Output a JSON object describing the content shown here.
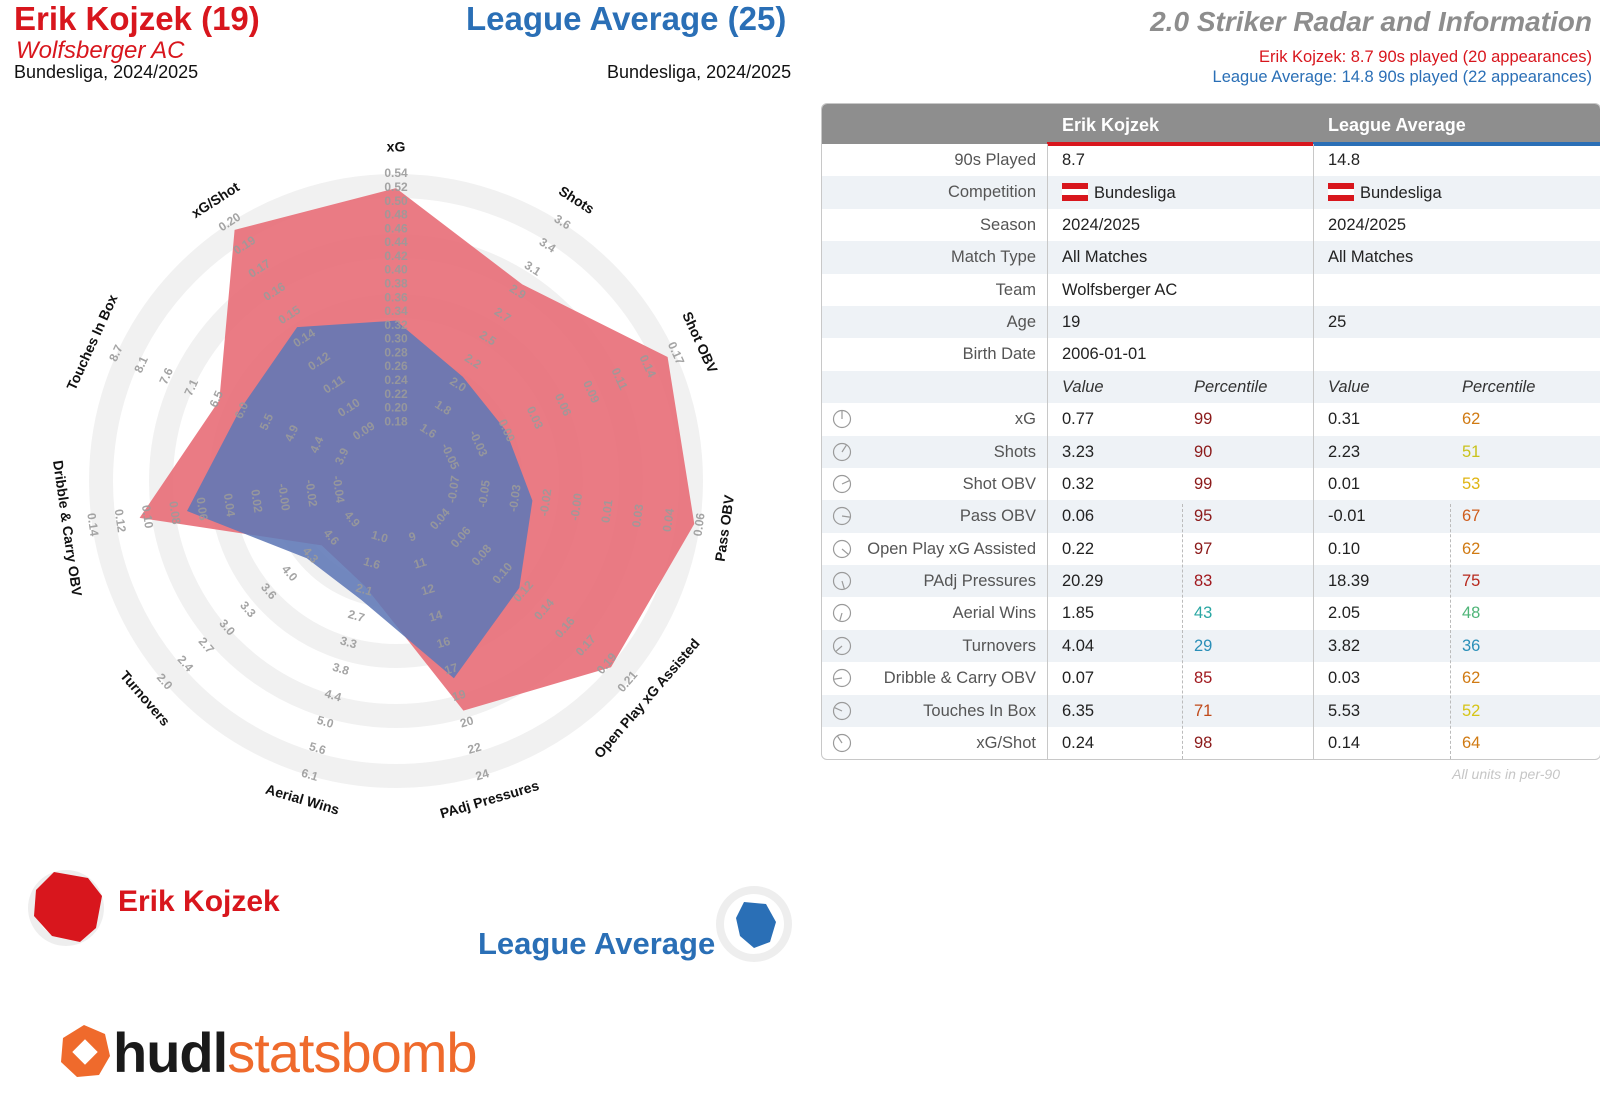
{
  "header": {
    "player_name": "Erik Kojzek (19)",
    "player_team": "Wolfsberger AC",
    "player_comp": "Bundesliga, 2024/2025",
    "average_name": "League Average (25)",
    "average_comp": "Bundesliga, 2024/2025",
    "title": "2.0 Striker Radar and Information",
    "player_minutes": "Erik Kojzek: 8.7 90s played (20 appearances)",
    "average_minutes": "League Average: 14.8 90s played (22 appearances)"
  },
  "colors": {
    "player": "#d8161d",
    "average": "#2a6fb6",
    "player_fill": "#e8707a",
    "average_fill": "#5f77b6"
  },
  "chart_data": {
    "type": "radar",
    "axes": [
      {
        "name": "xG",
        "ticks": [
          "0.18",
          "0.20",
          "0.22",
          "0.24",
          "0.26",
          "0.28",
          "0.30",
          "0.32",
          "0.34",
          "0.36",
          "0.38",
          "0.40",
          "0.42",
          "0.44",
          "0.46",
          "0.48",
          "0.50",
          "0.52",
          "0.54"
        ]
      },
      {
        "name": "Shots",
        "ticks": [
          "1.6",
          "1.8",
          "2.0",
          "2.2",
          "2.5",
          "2.7",
          "2.9",
          "3.1",
          "3.4",
          "3.6"
        ]
      },
      {
        "name": "Shot OBV",
        "ticks": [
          "-0.05",
          "-0.03",
          "0.00",
          "0.03",
          "0.06",
          "0.09",
          "0.11",
          "0.14",
          "0.17"
        ]
      },
      {
        "name": "Pass OBV",
        "ticks": [
          "-0.07",
          "-0.05",
          "-0.03",
          "-0.02",
          "-0.00",
          "0.01",
          "0.03",
          "0.04",
          "0.06"
        ]
      },
      {
        "name": "Open Play xG Assisted",
        "ticks": [
          "0.04",
          "0.06",
          "0.08",
          "0.10",
          "0.12",
          "0.14",
          "0.16",
          "0.17",
          "0.19",
          "0.21"
        ]
      },
      {
        "name": "PAdj Pressures",
        "ticks": [
          "9",
          "11",
          "12",
          "14",
          "16",
          "17",
          "19",
          "20",
          "22",
          "24"
        ]
      },
      {
        "name": "Aerial Wins",
        "ticks": [
          "1.0",
          "1.6",
          "2.1",
          "2.7",
          "3.3",
          "3.8",
          "4.4",
          "5.0",
          "5.6",
          "6.1"
        ]
      },
      {
        "name": "Turnovers",
        "ticks": [
          "4.9",
          "4.6",
          "4.3",
          "4.0",
          "3.6",
          "3.3",
          "3.0",
          "2.7",
          "2.4",
          "2.0"
        ]
      },
      {
        "name": "Dribble & Carry OBV",
        "ticks": [
          "-0.04",
          "-0.02",
          "-0.00",
          "0.02",
          "0.04",
          "0.06",
          "0.08",
          "0.10",
          "0.12",
          "0.14"
        ]
      },
      {
        "name": "Touches In Box",
        "ticks": [
          "3.9",
          "4.4",
          "4.9",
          "5.5",
          "6.0",
          "6.5",
          "7.1",
          "7.6",
          "8.1",
          "8.7"
        ]
      },
      {
        "name": "xG/Shot",
        "ticks": [
          "0.09",
          "0.10",
          "0.11",
          "0.12",
          "0.14",
          "0.15",
          "0.16",
          "0.17",
          "0.19",
          "0.20"
        ]
      }
    ],
    "series": [
      {
        "name": "Erik Kojzek",
        "values": [
          0.54,
          3.23,
          0.17,
          0.06,
          0.21,
          20.29,
          1.85,
          4.04,
          0.07,
          6.35,
          0.2
        ]
      },
      {
        "name": "League Average",
        "values": [
          0.31,
          2.23,
          0.01,
          -0.01,
          0.1,
          18.39,
          2.05,
          3.82,
          0.03,
          5.53,
          0.14
        ]
      }
    ],
    "fractions": [
      [
        0.95,
        0.74,
        0.97,
        0.98,
        0.92,
        0.76,
        0.3,
        0.26,
        0.83,
        0.6,
        0.97
      ],
      [
        0.48,
        0.35,
        0.34,
        0.4,
        0.49,
        0.64,
        0.35,
        0.33,
        0.66,
        0.52,
        0.56
      ]
    ]
  },
  "legend": {
    "player": "Erik Kojzek",
    "average": "League Average"
  },
  "brand": {
    "part1": "hudl",
    "part2": "statsbomb"
  },
  "table": {
    "head_player": "Erik Kojzek",
    "head_average": "League Average",
    "info_rows": [
      {
        "label": "90s Played",
        "player": "8.7",
        "average": "14.8"
      },
      {
        "label": "Competition",
        "player": "Bundesliga",
        "average": "Bundesliga"
      },
      {
        "label": "Season",
        "player": "2024/2025",
        "average": "2024/2025"
      },
      {
        "label": "Match Type",
        "player": "All Matches",
        "average": "All Matches"
      },
      {
        "label": "Team",
        "player": "Wolfsberger AC",
        "average": ""
      },
      {
        "label": "Age",
        "player": "19",
        "average": "25"
      },
      {
        "label": "Birth Date",
        "player": "2006-01-01",
        "average": ""
      }
    ],
    "sub_head": {
      "value": "Value",
      "percentile": "Percentile"
    },
    "stat_rows": [
      {
        "label": "xG",
        "pv": "0.77",
        "pp": "99",
        "pc": "#8b1a1a",
        "av": "0.31",
        "ap": "62",
        "ac": "#d07a12"
      },
      {
        "label": "Shots",
        "pv": "3.23",
        "pp": "90",
        "pc": "#8b1a1a",
        "av": "2.23",
        "ap": "51",
        "ac": "#c9c21c"
      },
      {
        "label": "Shot OBV",
        "pv": "0.32",
        "pp": "99",
        "pc": "#8b1a1a",
        "av": "0.01",
        "ap": "53",
        "ac": "#e0b512"
      },
      {
        "label": "Pass OBV",
        "pv": "0.06",
        "pp": "95",
        "pc": "#8b1a1a",
        "av": "-0.01",
        "ap": "67",
        "ac": "#cf5d1c"
      },
      {
        "label": "Open Play xG Assisted",
        "pv": "0.22",
        "pp": "97",
        "pc": "#8b1a1a",
        "av": "0.10",
        "ap": "62",
        "ac": "#d07a12"
      },
      {
        "label": "PAdj Pressures",
        "pv": "20.29",
        "pp": "83",
        "pc": "#a0181e",
        "av": "18.39",
        "ap": "75",
        "ac": "#b7281c"
      },
      {
        "label": "Aerial Wins",
        "pv": "1.85",
        "pp": "43",
        "pc": "#2aa7a3",
        "av": "2.05",
        "ap": "48",
        "ac": "#4fb578"
      },
      {
        "label": "Turnovers",
        "pv": "4.04",
        "pp": "29",
        "pc": "#2a8fb8",
        "av": "3.82",
        "ap": "36",
        "ac": "#2a8fb8"
      },
      {
        "label": "Dribble & Carry OBV",
        "pv": "0.07",
        "pp": "85",
        "pc": "#a0181e",
        "av": "0.03",
        "ap": "62",
        "ac": "#d07a12"
      },
      {
        "label": "Touches In Box",
        "pv": "6.35",
        "pp": "71",
        "pc": "#c04a1a",
        "av": "5.53",
        "ap": "52",
        "ac": "#d6c416"
      },
      {
        "label": "xG/Shot",
        "pv": "0.24",
        "pp": "98",
        "pc": "#8b1a1a",
        "av": "0.14",
        "ap": "64",
        "ac": "#d07a12"
      }
    ],
    "footnote": "All units in per-90"
  }
}
